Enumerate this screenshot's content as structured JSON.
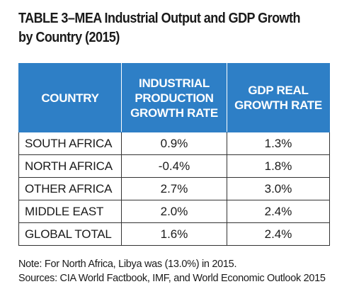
{
  "title": "TABLE 3–MEA Industrial Output and GDP Growth by Country (2015)",
  "table": {
    "headers": {
      "country": "COUNTRY",
      "industrial": "INDUSTRIAL PRODUCTION GROWTH RATE",
      "gdp": "GDP REAL GROWTH RATE"
    },
    "rows": [
      {
        "country": "SOUTH AFRICA",
        "industrial": "0.9%",
        "gdp": "1.3%"
      },
      {
        "country": "NORTH AFRICA",
        "industrial": "-0.4%",
        "gdp": "1.8%"
      },
      {
        "country": "OTHER AFRICA",
        "industrial": "2.7%",
        "gdp": "3.0%"
      },
      {
        "country": "MIDDLE EAST",
        "industrial": "2.0%",
        "gdp": "2.4%"
      },
      {
        "country": "GLOBAL TOTAL",
        "industrial": "1.6%",
        "gdp": "2.4%"
      }
    ]
  },
  "notes": {
    "note": "Note: For North Africa, Libya was (13.0%) in 2015.",
    "sources": "Sources: CIA World Factbook, IMF, and World Economic Outlook 2015"
  },
  "colors": {
    "header_background": "#2e7fc6",
    "header_text": "#ffffff",
    "border": "#333333"
  }
}
